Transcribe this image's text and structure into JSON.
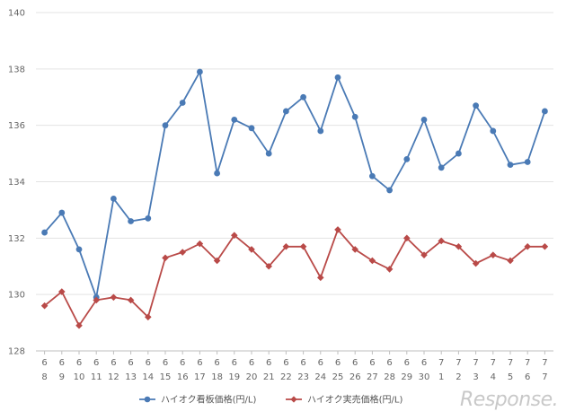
{
  "chart_data": {
    "type": "line",
    "title": "",
    "xlabel": "",
    "ylabel": "",
    "ylim": [
      128,
      140
    ],
    "yticks": [
      128,
      130,
      132,
      134,
      136,
      138,
      140
    ],
    "grid": "horizontal",
    "legend_position": "bottom-center",
    "categories": [
      [
        "6",
        "8"
      ],
      [
        "6",
        "9"
      ],
      [
        "6",
        "10"
      ],
      [
        "6",
        "11"
      ],
      [
        "6",
        "12"
      ],
      [
        "6",
        "13"
      ],
      [
        "6",
        "14"
      ],
      [
        "6",
        "15"
      ],
      [
        "6",
        "16"
      ],
      [
        "6",
        "17"
      ],
      [
        "6",
        "18"
      ],
      [
        "6",
        "19"
      ],
      [
        "6",
        "20"
      ],
      [
        "6",
        "21"
      ],
      [
        "6",
        "22"
      ],
      [
        "6",
        "23"
      ],
      [
        "6",
        "24"
      ],
      [
        "6",
        "25"
      ],
      [
        "6",
        "26"
      ],
      [
        "6",
        "27"
      ],
      [
        "6",
        "28"
      ],
      [
        "6",
        "29"
      ],
      [
        "6",
        "30"
      ],
      [
        "7",
        "1"
      ],
      [
        "7",
        "2"
      ],
      [
        "7",
        "3"
      ],
      [
        "7",
        "4"
      ],
      [
        "7",
        "5"
      ],
      [
        "7",
        "6"
      ],
      [
        "7",
        "7"
      ]
    ],
    "series": [
      {
        "name": "ハイオク看板価格(円/L)",
        "color": "#4a7ab5",
        "marker": "circle",
        "values": [
          132.2,
          132.9,
          131.6,
          129.9,
          133.4,
          132.6,
          132.7,
          136.0,
          136.8,
          137.9,
          134.3,
          136.2,
          135.9,
          135.0,
          136.5,
          137.0,
          135.8,
          137.7,
          136.3,
          134.2,
          133.7,
          134.8,
          136.2,
          134.5,
          135.0,
          136.7,
          135.8,
          134.6,
          134.7,
          136.5
        ]
      },
      {
        "name": "ハイオク実売価格(円/L)",
        "color": "#b94a48",
        "marker": "diamond",
        "values": [
          129.6,
          130.1,
          128.9,
          129.8,
          129.9,
          129.8,
          129.2,
          131.3,
          131.5,
          131.8,
          131.2,
          132.1,
          131.6,
          131.0,
          131.7,
          131.7,
          130.6,
          132.3,
          131.6,
          131.2,
          130.9,
          132.0,
          131.4,
          131.9,
          131.7,
          131.1,
          131.4,
          131.2,
          131.7,
          131.7
        ]
      }
    ]
  },
  "watermark": {
    "text": "Response."
  }
}
